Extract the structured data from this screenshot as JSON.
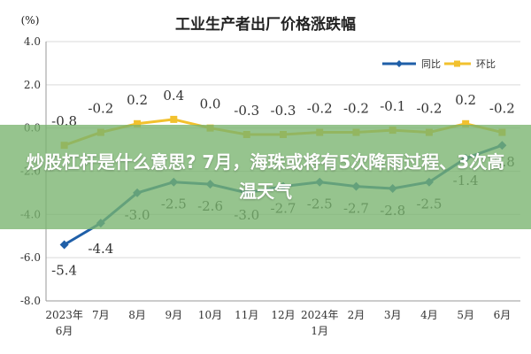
{
  "overlay": {
    "headline": "炒股杠杆是什么意思? 7月，海珠或将有5次降雨过程、3次高温天气"
  },
  "chart_data": {
    "type": "line",
    "title": "工业生产者出厂价格涨跌幅",
    "ylabel": "(%)",
    "ylim": [
      -8.0,
      4.0
    ],
    "yticks": [
      "4.0",
      "2.0",
      "0.0",
      "-2.0",
      "-4.0",
      "-6.0",
      "-8.0"
    ],
    "categories": [
      [
        "2023年",
        "6月"
      ],
      [
        "7月"
      ],
      [
        "8月"
      ],
      [
        "9月"
      ],
      [
        "10月"
      ],
      [
        "11月"
      ],
      [
        "12月"
      ],
      [
        "2024年",
        "1月"
      ],
      [
        "2月"
      ],
      [
        "3月"
      ],
      [
        "4月"
      ],
      [
        "5月"
      ],
      [
        "6月"
      ]
    ],
    "series": [
      {
        "name": "同比",
        "color": "#1f5fa8",
        "values": [
          -5.4,
          -4.4,
          -3.0,
          -2.5,
          -2.6,
          -3.0,
          -2.7,
          -2.5,
          -2.7,
          -2.8,
          -2.5,
          -1.4,
          -0.8
        ],
        "labels": [
          "-5.4",
          "-4.4",
          "-3.0",
          "-2.5",
          "-2.6",
          "-3.0",
          "-2.7",
          "-2.5",
          "-2.7",
          "-2.8",
          "-2.5",
          "-1.4",
          "-0.8"
        ]
      },
      {
        "name": "环比",
        "color": "#f2c12e",
        "values": [
          -0.8,
          -0.2,
          0.2,
          0.4,
          0.0,
          -0.3,
          -0.3,
          -0.2,
          -0.2,
          -0.1,
          -0.2,
          0.2,
          -0.2
        ],
        "labels": [
          "-0.8",
          "-0.2",
          "0.2",
          "0.4",
          "0.0",
          "-0.3",
          "-0.3",
          "-0.2",
          "-0.2",
          "-0.1",
          "-0.2",
          "0.2",
          "-0.2"
        ]
      }
    ],
    "grid": true,
    "legend": "top-right"
  }
}
